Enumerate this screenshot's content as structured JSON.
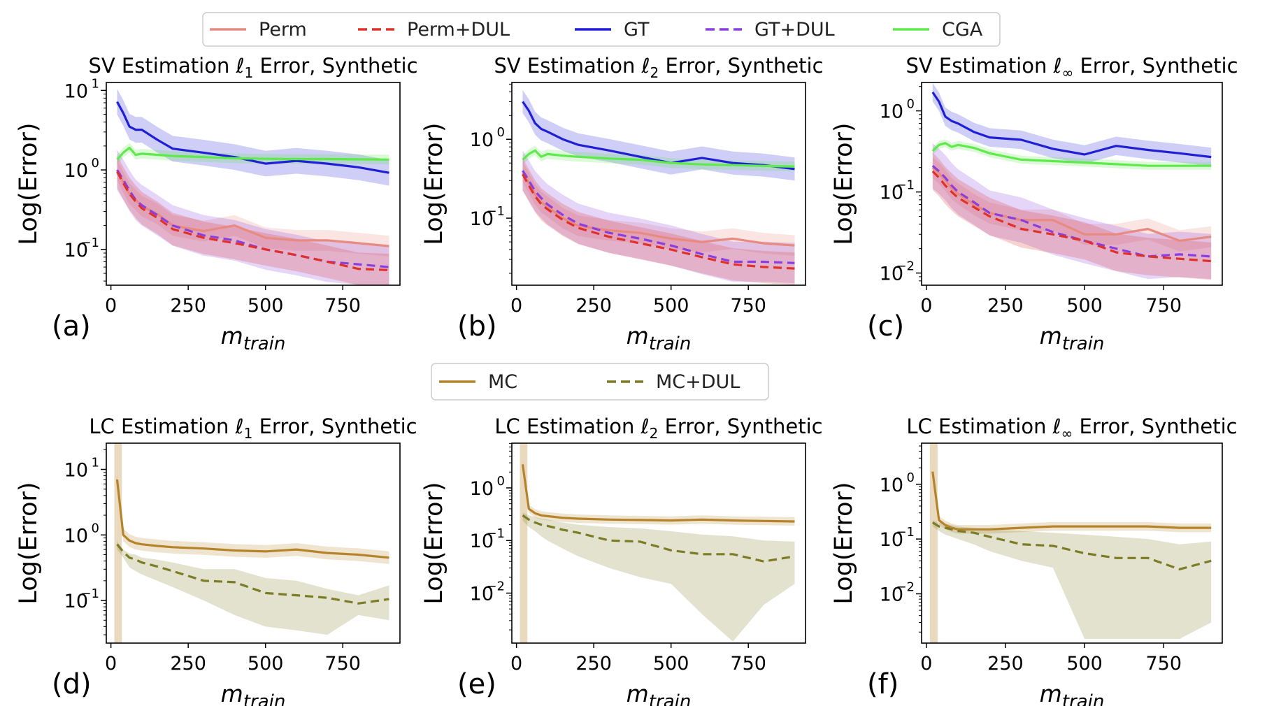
{
  "top_legend": {
    "entries": [
      {
        "label": "Perm",
        "color": "#e88a80",
        "dash": false
      },
      {
        "label": "Perm+DUL",
        "color": "#e0302a",
        "dash": true
      },
      {
        "label": "GT",
        "color": "#1f1fd6",
        "dash": false
      },
      {
        "label": "GT+DUL",
        "color": "#8a3ee0",
        "dash": true
      },
      {
        "label": "CGA",
        "color": "#5eea4a",
        "dash": false
      }
    ]
  },
  "bottom_legend": {
    "entries": [
      {
        "label": "MC",
        "color": "#b5842a",
        "dash": false
      },
      {
        "label": "MC+DUL",
        "color": "#7c7c26",
        "dash": true
      }
    ]
  },
  "chart_data": [
    {
      "type": "line",
      "letter": "(a)",
      "title_pre": "SV Estimation ",
      "title_sym": "ℓ",
      "title_sub": "1",
      "title_post": " Error, Synthetic",
      "ylabel": "Log(Error)",
      "xlabel_main": "m",
      "xlabel_sub": "train",
      "xlim": [
        -15,
        935
      ],
      "ylog": [
        -1.45,
        1.1
      ],
      "xticks": [
        0,
        250,
        500,
        750
      ],
      "yticks": [
        {
          "v": 1,
          "label": "10"
        },
        {
          "v": 0,
          "label": "10"
        },
        {
          "v": -1,
          "label": "10"
        }
      ],
      "ytick_exps": [
        "1",
        "0",
        "−1"
      ],
      "x": [
        20,
        40,
        60,
        80,
        100,
        150,
        200,
        300,
        400,
        500,
        600,
        700,
        800,
        900
      ],
      "series": [
        {
          "name": "GT",
          "color": "#1f1fd6",
          "dash": false,
          "values": [
            7.2,
            5.2,
            3.5,
            3.2,
            3.2,
            2.4,
            1.85,
            1.65,
            1.45,
            1.2,
            1.3,
            1.2,
            1.08,
            0.92
          ],
          "band": 1.45
        },
        {
          "name": "CGA",
          "color": "#5eea4a",
          "dash": false,
          "values": [
            1.35,
            1.65,
            1.9,
            1.55,
            1.6,
            1.55,
            1.5,
            1.45,
            1.4,
            1.38,
            1.37,
            1.37,
            1.36,
            1.35
          ],
          "band": 1.15
        },
        {
          "name": "Perm",
          "color": "#e88a80",
          "dash": false,
          "values": [
            1.0,
            0.7,
            0.5,
            0.42,
            0.35,
            0.28,
            0.2,
            0.17,
            0.2,
            0.14,
            0.13,
            0.13,
            0.12,
            0.11
          ],
          "band": 1.35
        },
        {
          "name": "GT+DUL",
          "color": "#8a3ee0",
          "dash": true,
          "values": [
            1.0,
            0.75,
            0.55,
            0.42,
            0.36,
            0.27,
            0.2,
            0.15,
            0.13,
            0.1,
            0.085,
            0.07,
            0.065,
            0.06
          ],
          "band": 1.8
        },
        {
          "name": "Perm+DUL",
          "color": "#e0302a",
          "dash": true,
          "values": [
            0.95,
            0.68,
            0.5,
            0.4,
            0.33,
            0.25,
            0.18,
            0.14,
            0.12,
            0.1,
            0.085,
            0.07,
            0.057,
            0.055
          ],
          "band": 1.6
        }
      ]
    },
    {
      "type": "line",
      "letter": "(b)",
      "title_pre": "SV Estimation ",
      "title_sym": "ℓ",
      "title_sub": "2",
      "title_post": " Error, Synthetic",
      "ylabel": "Log(Error)",
      "xlabel_main": "m",
      "xlabel_sub": "train",
      "xlim": [
        -15,
        935
      ],
      "ylog": [
        -1.85,
        0.72
      ],
      "xticks": [
        0,
        250,
        500,
        750
      ],
      "yticks": [
        {
          "v": 0,
          "label": "10"
        },
        {
          "v": -1,
          "label": "10"
        }
      ],
      "ytick_exps": [
        "0",
        "−1"
      ],
      "x": [
        20,
        40,
        60,
        80,
        100,
        150,
        200,
        300,
        400,
        500,
        600,
        700,
        800,
        900
      ],
      "series": [
        {
          "name": "GT",
          "color": "#1f1fd6",
          "dash": false,
          "values": [
            3.0,
            2.3,
            1.6,
            1.35,
            1.25,
            1.0,
            0.85,
            0.72,
            0.6,
            0.5,
            0.58,
            0.5,
            0.47,
            0.42
          ],
          "band": 1.4
        },
        {
          "name": "CGA",
          "color": "#5eea4a",
          "dash": false,
          "values": [
            0.55,
            0.65,
            0.72,
            0.6,
            0.65,
            0.62,
            0.6,
            0.57,
            0.55,
            0.5,
            0.48,
            0.47,
            0.46,
            0.45
          ],
          "band": 1.15
        },
        {
          "name": "Perm",
          "color": "#e88a80",
          "dash": false,
          "values": [
            0.38,
            0.28,
            0.2,
            0.16,
            0.14,
            0.1,
            0.08,
            0.07,
            0.065,
            0.055,
            0.05,
            0.055,
            0.048,
            0.045
          ],
          "band": 1.35
        },
        {
          "name": "GT+DUL",
          "color": "#8a3ee0",
          "dash": true,
          "values": [
            0.4,
            0.3,
            0.22,
            0.18,
            0.15,
            0.11,
            0.085,
            0.065,
            0.055,
            0.045,
            0.035,
            0.028,
            0.028,
            0.027
          ],
          "band": 1.8
        },
        {
          "name": "Perm+DUL",
          "color": "#e0302a",
          "dash": true,
          "values": [
            0.36,
            0.26,
            0.19,
            0.15,
            0.13,
            0.095,
            0.075,
            0.058,
            0.048,
            0.04,
            0.032,
            0.026,
            0.024,
            0.023
          ],
          "band": 1.6
        }
      ]
    },
    {
      "type": "line",
      "letter": "(c)",
      "title_pre": "SV Estimation ",
      "title_sym": "ℓ",
      "title_sub": "∞",
      "title_post": " Error, Synthetic",
      "ylabel": "Log(Error)",
      "xlabel_main": "m",
      "xlabel_sub": "train",
      "xlim": [
        -15,
        935
      ],
      "ylog": [
        -2.15,
        0.35
      ],
      "xticks": [
        0,
        250,
        500,
        750
      ],
      "yticks": [
        {
          "v": 0,
          "label": "10"
        },
        {
          "v": -1,
          "label": "10"
        },
        {
          "v": -2,
          "label": "10"
        }
      ],
      "ytick_exps": [
        "0",
        "−1",
        "−2"
      ],
      "x": [
        20,
        40,
        60,
        80,
        100,
        150,
        200,
        300,
        400,
        500,
        600,
        700,
        800,
        900
      ],
      "series": [
        {
          "name": "GT",
          "color": "#1f1fd6",
          "dash": false,
          "values": [
            1.7,
            1.3,
            0.85,
            0.75,
            0.7,
            0.55,
            0.47,
            0.44,
            0.34,
            0.29,
            0.37,
            0.33,
            0.3,
            0.27
          ],
          "band": 1.3
        },
        {
          "name": "CGA",
          "color": "#5eea4a",
          "dash": false,
          "values": [
            0.32,
            0.38,
            0.4,
            0.36,
            0.38,
            0.35,
            0.3,
            0.25,
            0.24,
            0.23,
            0.22,
            0.21,
            0.21,
            0.21
          ],
          "band": 1.12
        },
        {
          "name": "Perm",
          "color": "#e88a80",
          "dash": false,
          "values": [
            0.2,
            0.17,
            0.14,
            0.11,
            0.095,
            0.07,
            0.055,
            0.045,
            0.045,
            0.03,
            0.03,
            0.035,
            0.025,
            0.028
          ],
          "band": 1.35
        },
        {
          "name": "GT+DUL",
          "color": "#8a3ee0",
          "dash": true,
          "values": [
            0.21,
            0.18,
            0.15,
            0.12,
            0.1,
            0.075,
            0.055,
            0.045,
            0.032,
            0.025,
            0.02,
            0.016,
            0.017,
            0.016
          ],
          "band": 1.9
        },
        {
          "name": "Perm+DUL",
          "color": "#e0302a",
          "dash": true,
          "values": [
            0.18,
            0.15,
            0.12,
            0.1,
            0.085,
            0.065,
            0.05,
            0.035,
            0.03,
            0.025,
            0.018,
            0.016,
            0.015,
            0.014
          ],
          "band": 1.7
        }
      ]
    },
    {
      "type": "line",
      "letter": "(d)",
      "title_pre": "LC Estimation ",
      "title_sym": "ℓ",
      "title_sub": "1",
      "title_post": " Error, Synthetic",
      "ylabel": "Log(Error)",
      "xlabel_main": "m",
      "xlabel_sub": "train",
      "xlim": [
        -15,
        935
      ],
      "ylog": [
        -1.65,
        1.4
      ],
      "xticks": [
        0,
        250,
        500,
        750
      ],
      "yticks": [
        {
          "v": 1,
          "label": "10"
        },
        {
          "v": 0,
          "label": "10"
        },
        {
          "v": -1,
          "label": "10"
        }
      ],
      "ytick_exps": [
        "1",
        "0",
        "−1"
      ],
      "x": [
        20,
        40,
        60,
        80,
        100,
        150,
        200,
        300,
        400,
        500,
        600,
        700,
        800,
        900
      ],
      "series": [
        {
          "name": "MC",
          "color": "#b5842a",
          "dash": false,
          "values": [
            7.0,
            1.0,
            0.82,
            0.75,
            0.72,
            0.68,
            0.65,
            0.62,
            0.58,
            0.56,
            0.6,
            0.53,
            0.5,
            0.45
          ],
          "band": 1.25,
          "spike": true
        },
        {
          "name": "MC+DUL",
          "color": "#7c7c26",
          "dash": true,
          "values": [
            0.72,
            0.55,
            0.45,
            0.42,
            0.38,
            0.33,
            0.28,
            0.2,
            0.19,
            0.13,
            0.12,
            0.11,
            0.09,
            0.105
          ],
          "lower": [
            0.6,
            0.45,
            0.32,
            0.28,
            0.25,
            0.2,
            0.16,
            0.1,
            0.06,
            0.04,
            0.035,
            0.03,
            0.06,
            0.05
          ],
          "upper": [
            0.8,
            0.6,
            0.52,
            0.5,
            0.45,
            0.42,
            0.38,
            0.3,
            0.3,
            0.22,
            0.2,
            0.15,
            0.12,
            0.17
          ]
        }
      ]
    },
    {
      "type": "line",
      "letter": "(e)",
      "title_pre": "LC Estimation ",
      "title_sym": "ℓ",
      "title_sub": "2",
      "title_post": " Error, Synthetic",
      "ylabel": "Log(Error)",
      "xlabel_main": "m",
      "xlabel_sub": "train",
      "xlim": [
        -15,
        935
      ],
      "ylog": [
        -2.95,
        0.85
      ],
      "xticks": [
        0,
        250,
        500,
        750
      ],
      "yticks": [
        {
          "v": 0,
          "label": "10"
        },
        {
          "v": -1,
          "label": "10"
        },
        {
          "v": -2,
          "label": "10"
        }
      ],
      "ytick_exps": [
        "0",
        "−1",
        "−2"
      ],
      "x": [
        20,
        40,
        60,
        80,
        100,
        150,
        200,
        300,
        400,
        500,
        600,
        700,
        800,
        900
      ],
      "series": [
        {
          "name": "MC",
          "color": "#b5842a",
          "dash": false,
          "values": [
            2.8,
            0.4,
            0.33,
            0.3,
            0.29,
            0.27,
            0.26,
            0.25,
            0.245,
            0.24,
            0.25,
            0.24,
            0.235,
            0.23
          ],
          "band": 1.2,
          "spike": true
        },
        {
          "name": "MC+DUL",
          "color": "#7c7c26",
          "dash": true,
          "values": [
            0.3,
            0.25,
            0.22,
            0.2,
            0.19,
            0.16,
            0.14,
            0.1,
            0.095,
            0.065,
            0.055,
            0.055,
            0.04,
            0.05
          ],
          "lower": [
            0.24,
            0.18,
            0.15,
            0.12,
            0.1,
            0.07,
            0.05,
            0.03,
            0.02,
            0.015,
            0.004,
            0.0012,
            0.006,
            0.015
          ],
          "upper": [
            0.34,
            0.3,
            0.28,
            0.26,
            0.25,
            0.22,
            0.2,
            0.18,
            0.17,
            0.15,
            0.13,
            0.12,
            0.1,
            0.095
          ]
        }
      ]
    },
    {
      "type": "line",
      "letter": "(f)",
      "title_pre": "LC Estimation ",
      "title_sym": "ℓ",
      "title_sub": "∞",
      "title_post": " Error, Synthetic",
      "ylabel": "Log(Error)",
      "xlabel_main": "m",
      "xlabel_sub": "train",
      "xlim": [
        -15,
        935
      ],
      "ylog": [
        -2.9,
        0.75
      ],
      "xticks": [
        0,
        250,
        500,
        750
      ],
      "yticks": [
        {
          "v": 0,
          "label": "10"
        },
        {
          "v": -1,
          "label": "10"
        },
        {
          "v": -2,
          "label": "10"
        }
      ],
      "ytick_exps": [
        "0",
        "−1",
        "−2"
      ],
      "x": [
        20,
        40,
        60,
        80,
        100,
        150,
        200,
        300,
        400,
        500,
        600,
        700,
        800,
        900
      ],
      "series": [
        {
          "name": "MC",
          "color": "#b5842a",
          "dash": false,
          "values": [
            1.7,
            0.22,
            0.18,
            0.16,
            0.15,
            0.15,
            0.15,
            0.16,
            0.17,
            0.17,
            0.17,
            0.17,
            0.16,
            0.16
          ],
          "band": 1.2,
          "spike": true
        },
        {
          "name": "MC+DUL",
          "color": "#7c7c26",
          "dash": true,
          "values": [
            0.2,
            0.17,
            0.16,
            0.15,
            0.14,
            0.13,
            0.11,
            0.08,
            0.075,
            0.055,
            0.045,
            0.045,
            0.028,
            0.04
          ],
          "lower": [
            0.17,
            0.14,
            0.12,
            0.11,
            0.1,
            0.08,
            0.06,
            0.04,
            0.03,
            0.0015,
            0.0015,
            0.0015,
            0.0015,
            0.003
          ],
          "upper": [
            0.22,
            0.2,
            0.19,
            0.18,
            0.17,
            0.16,
            0.15,
            0.14,
            0.13,
            0.12,
            0.11,
            0.1,
            0.08,
            0.09
          ]
        }
      ]
    }
  ]
}
